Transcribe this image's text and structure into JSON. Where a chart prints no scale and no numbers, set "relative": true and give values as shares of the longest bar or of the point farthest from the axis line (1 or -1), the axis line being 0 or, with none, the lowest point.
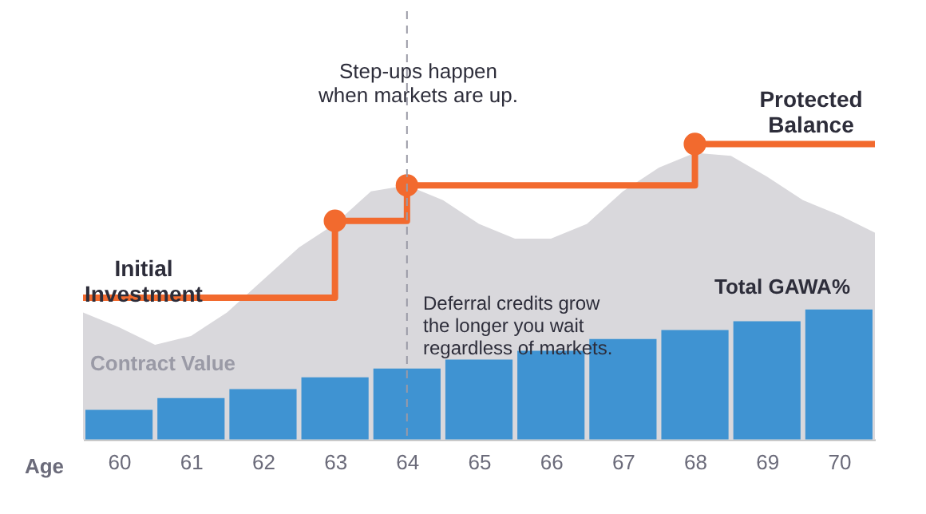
{
  "chart_data": {
    "type": "bar",
    "relative": true,
    "xlabel": "Age",
    "xlim": [
      59.5,
      70.5
    ],
    "xticks": [
      60,
      61,
      62,
      63,
      64,
      65,
      66,
      67,
      68,
      69,
      70
    ],
    "tick_labels": "x",
    "grid": false,
    "series": [
      {
        "type": "area",
        "color": "#d9d8dc",
        "x": [
          59.5,
          60,
          60.5,
          61,
          61.5,
          62,
          62.5,
          63,
          63.5,
          64,
          64.5,
          65,
          65.5,
          66,
          66.5,
          67,
          67.5,
          68,
          68.5,
          69,
          69.5,
          70,
          70.5
        ],
        "values": [
          0.43,
          0.38,
          0.32,
          0.35,
          0.43,
          0.54,
          0.65,
          0.73,
          0.84,
          0.86,
          0.81,
          0.73,
          0.68,
          0.68,
          0.73,
          0.84,
          0.92,
          0.97,
          0.96,
          0.89,
          0.81,
          0.76,
          0.7
        ]
      },
      {
        "color": "#3f93d2",
        "x": [
          60,
          61,
          62,
          63,
          64,
          65,
          66,
          67,
          68,
          69,
          70
        ],
        "values": [
          0.1,
          0.14,
          0.17,
          0.21,
          0.24,
          0.27,
          0.3,
          0.34,
          0.37,
          0.4,
          0.44
        ]
      },
      {
        "type": "step",
        "color": "#f26a2e",
        "line_style": "solid",
        "x": [
          59.5,
          63,
          64,
          68,
          70.5
        ],
        "values": [
          0.48,
          0.74,
          0.86,
          1.0,
          1.0
        ]
      },
      {
        "type": "scatter",
        "color": "#f26a2e",
        "marker": "circle",
        "x": [
          63,
          64,
          68
        ],
        "values": [
          0.74,
          0.86,
          1.0
        ]
      }
    ],
    "ref_lines": [
      {
        "axis": "x",
        "value": 64,
        "color": "#9a9aa6",
        "line_style": "dashed"
      }
    ],
    "annotations": [
      "Initial\nInvestment",
      "Protected\nBalance",
      "Total GAWA%",
      "Contract Value",
      "Step-ups happen\nwhen markets are up.",
      "Deferral credits grow\nthe longer you wait\nregardless of markets."
    ]
  }
}
